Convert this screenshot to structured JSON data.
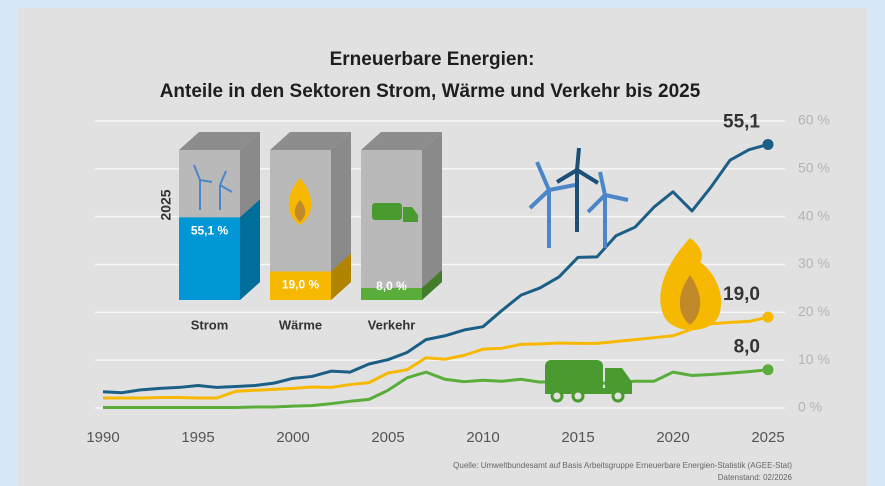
{
  "chart_data": [
    {
      "type": "line",
      "title": [
        "Erneuerbare Energien:",
        "Anteile in den Sektoren Strom, Wärme und Verkehr bis 2025"
      ],
      "x": [
        1990,
        1991,
        1992,
        1993,
        1994,
        1995,
        1996,
        1997,
        1998,
        1999,
        2000,
        2001,
        2002,
        2003,
        2004,
        2005,
        2006,
        2007,
        2008,
        2009,
        2010,
        2011,
        2012,
        2013,
        2014,
        2015,
        2016,
        2017,
        2018,
        2019,
        2020,
        2021,
        2022,
        2023,
        2024,
        2025
      ],
      "series": [
        {
          "name": "Strom",
          "color": "#1b5f86",
          "values": [
            3.4,
            3.2,
            3.8,
            4.1,
            4.3,
            4.7,
            4.3,
            4.5,
            4.7,
            5.2,
            6.2,
            6.6,
            7.7,
            7.5,
            9.2,
            10.1,
            11.6,
            14.3,
            15.1,
            16.3,
            17.0,
            20.4,
            23.6,
            25.1,
            27.4,
            31.5,
            31.6,
            36.0,
            37.8,
            42.0,
            45.2,
            41.2,
            46.2,
            51.8,
            54.0,
            55.1
          ],
          "value_labels": [
            null,
            null,
            null,
            null,
            null,
            null,
            null,
            null,
            null,
            null,
            null,
            null,
            null,
            null,
            null,
            null,
            null,
            null,
            null,
            null,
            null,
            null,
            null,
            null,
            null,
            null,
            null,
            null,
            null,
            null,
            null,
            null,
            null,
            null,
            null,
            "55,1"
          ]
        },
        {
          "name": "Wärme",
          "color": "#f6b800",
          "values": [
            2.1,
            2.1,
            2.1,
            2.2,
            2.2,
            2.1,
            2.1,
            3.5,
            3.7,
            3.9,
            4.1,
            4.4,
            4.3,
            4.9,
            5.3,
            7.3,
            8.0,
            10.5,
            10.2,
            11.0,
            12.3,
            12.5,
            13.3,
            13.4,
            13.6,
            13.5,
            13.5,
            13.9,
            14.3,
            14.7,
            15.1,
            16.5,
            17.6,
            17.9,
            18.1,
            19.0
          ],
          "value_labels": [
            null,
            null,
            null,
            null,
            null,
            null,
            null,
            null,
            null,
            null,
            null,
            null,
            null,
            null,
            null,
            null,
            null,
            null,
            null,
            null,
            null,
            null,
            null,
            null,
            null,
            null,
            null,
            null,
            null,
            null,
            null,
            null,
            null,
            null,
            null,
            "19,0"
          ]
        },
        {
          "name": "Verkehr",
          "color": "#5aad3a",
          "values": [
            0.1,
            0.1,
            0.1,
            0.1,
            0.1,
            0.1,
            0.1,
            0.1,
            0.2,
            0.2,
            0.4,
            0.5,
            0.9,
            1.4,
            1.8,
            3.7,
            6.3,
            7.5,
            6.0,
            5.5,
            5.8,
            5.6,
            6.0,
            5.4,
            5.6,
            5.2,
            5.2,
            5.2,
            5.6,
            5.6,
            7.5,
            6.8,
            7.0,
            7.3,
            7.6,
            8.0
          ],
          "value_labels": [
            null,
            null,
            null,
            null,
            null,
            null,
            null,
            null,
            null,
            null,
            null,
            null,
            null,
            null,
            null,
            null,
            null,
            null,
            null,
            null,
            null,
            null,
            null,
            null,
            null,
            null,
            null,
            null,
            null,
            null,
            null,
            null,
            null,
            null,
            null,
            "8,0"
          ]
        }
      ],
      "xlim": [
        1990,
        2025
      ],
      "xticks": [
        1990,
        1995,
        2000,
        2005,
        2010,
        2015,
        2020,
        2025
      ],
      "ylim": [
        0,
        60
      ],
      "yticks": [
        {
          "value": 0,
          "label": "0 %"
        },
        {
          "value": 10,
          "label": "10 %"
        },
        {
          "value": 20,
          "label": "20 %"
        },
        {
          "value": 30,
          "label": "30 %"
        },
        {
          "value": 40,
          "label": "40 %"
        },
        {
          "value": 50,
          "label": "50 %"
        },
        {
          "value": 60,
          "label": "60 %"
        }
      ],
      "grid": true,
      "source": [
        "Quelle: Umweltbundesamt auf Basis Arbeitsgruppe Erneuerbare Energien-Statistik (AGEE-Stat)",
        "Datenstand: 02/2026"
      ]
    },
    {
      "type": "box3d",
      "year_label": "2025",
      "categories": [
        "Strom",
        "Wärme",
        "Verkehr"
      ],
      "values": [
        55.1,
        19.0,
        8.0
      ],
      "value_labels": [
        "55,1 %",
        "19,0 %",
        "8,0 %"
      ],
      "colors": [
        "#0097d7",
        "#f6b800",
        "#5aad3a"
      ],
      "ylim": [
        0,
        100
      ]
    }
  ]
}
